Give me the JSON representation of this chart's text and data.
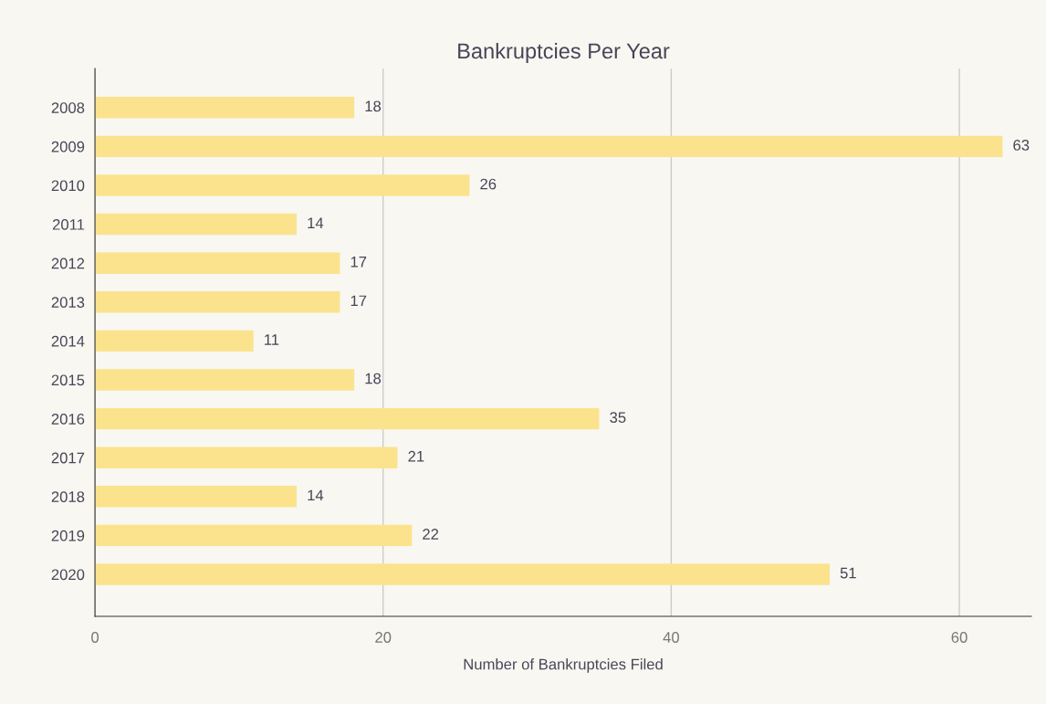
{
  "chart_data": {
    "type": "bar",
    "orientation": "horizontal",
    "title": "Bankruptcies Per Year",
    "xlabel": "Number of Bankruptcies Filed",
    "categories": [
      "2008",
      "2009",
      "2010",
      "2011",
      "2012",
      "2013",
      "2014",
      "2015",
      "2016",
      "2017",
      "2018",
      "2019",
      "2020"
    ],
    "values": [
      18,
      63,
      26,
      14,
      17,
      17,
      11,
      18,
      35,
      21,
      14,
      22,
      51
    ],
    "color": "#fbe38e",
    "xlim": [
      0,
      65
    ],
    "xticks": [
      0,
      20,
      40,
      60
    ],
    "grid": "x",
    "data_labels": true
  }
}
